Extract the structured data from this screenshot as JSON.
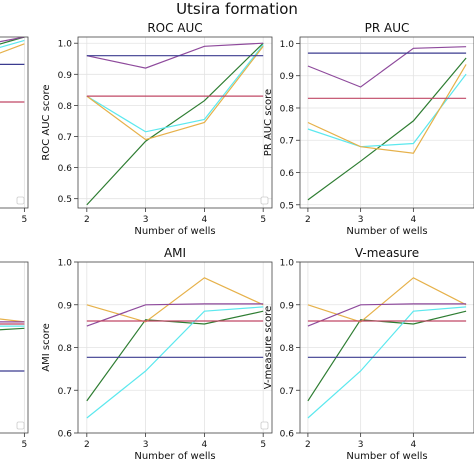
{
  "suptitle": "Utsira formation",
  "colors": {
    "dark_green": "#2e7d32",
    "cyan": "#5ce8ee",
    "orange": "#e6b14a",
    "purple": "#8e4a9c",
    "navy": "#3b3b8f",
    "pink": "#c04866"
  },
  "chart_data": [
    {
      "type": "line",
      "title": "",
      "xlabel": "",
      "ylabel": "",
      "x": [
        2,
        3,
        4,
        5
      ],
      "xticks": [
        "5"
      ],
      "yticks": [],
      "ylim": [
        0.5,
        1.0
      ],
      "series": [
        {
          "color": "dark_green",
          "values": [
            0.92,
            0.95,
            0.97,
            1.0
          ]
        },
        {
          "color": "cyan",
          "values": [
            0.9,
            0.93,
            0.96,
            0.99
          ]
        },
        {
          "color": "orange",
          "values": [
            0.88,
            0.9,
            0.94,
            0.98
          ]
        },
        {
          "color": "purple",
          "values": [
            0.93,
            0.96,
            0.98,
            1.0
          ]
        },
        {
          "color": "navy",
          "values": [
            0.92,
            0.92,
            0.92,
            0.92
          ]
        },
        {
          "color": "pink",
          "values": [
            0.81,
            0.81,
            0.81,
            0.81
          ]
        }
      ]
    },
    {
      "type": "line",
      "title": "ROC AUC",
      "xlabel": "Number of wells",
      "ylabel": "ROC AUC score",
      "x": [
        2,
        3,
        4,
        5
      ],
      "xticks": [
        "2",
        "3",
        "4",
        "5"
      ],
      "yticks": [
        "0.5",
        "0.6",
        "0.7",
        "0.8",
        "0.9",
        "1.0"
      ],
      "ylim": [
        0.47,
        1.02
      ],
      "series": [
        {
          "color": "dark_green",
          "values": [
            0.48,
            0.685,
            0.815,
            1.0
          ]
        },
        {
          "color": "cyan",
          "values": [
            0.83,
            0.715,
            0.755,
            0.995
          ]
        },
        {
          "color": "orange",
          "values": [
            0.83,
            0.69,
            0.745,
            0.99
          ]
        },
        {
          "color": "purple",
          "values": [
            0.96,
            0.92,
            0.99,
            1.0
          ]
        },
        {
          "color": "navy",
          "values": [
            0.96,
            0.96,
            0.96,
            0.96
          ]
        },
        {
          "color": "pink",
          "values": [
            0.83,
            0.83,
            0.83,
            0.83
          ]
        }
      ]
    },
    {
      "type": "line",
      "title": "PR AUC",
      "xlabel": "Number of wells",
      "ylabel": "PR AUC score",
      "x": [
        2,
        3,
        4,
        5
      ],
      "xticks": [
        "2",
        "3",
        "4"
      ],
      "yticks": [
        "0.5",
        "0.6",
        "0.7",
        "0.8",
        "0.9",
        "1.0"
      ],
      "ylim": [
        0.49,
        1.02
      ],
      "series": [
        {
          "color": "dark_green",
          "values": [
            0.515,
            0.635,
            0.76,
            0.955
          ]
        },
        {
          "color": "cyan",
          "values": [
            0.735,
            0.68,
            0.69,
            0.905
          ]
        },
        {
          "color": "orange",
          "values": [
            0.755,
            0.68,
            0.66,
            0.935
          ]
        },
        {
          "color": "purple",
          "values": [
            0.93,
            0.865,
            0.985,
            0.99
          ]
        },
        {
          "color": "navy",
          "values": [
            0.97,
            0.97,
            0.97,
            0.97
          ]
        },
        {
          "color": "pink",
          "values": [
            0.83,
            0.83,
            0.83,
            0.83
          ]
        }
      ]
    },
    {
      "type": "line",
      "title": "",
      "xlabel": "",
      "ylabel": "",
      "x": [
        2,
        3,
        4,
        5
      ],
      "xticks": [
        "5"
      ],
      "yticks": [],
      "ylim": [
        0.6,
        1.0
      ],
      "series": [
        {
          "color": "dark_green",
          "values": [
            0.82,
            0.83,
            0.84,
            0.845
          ]
        },
        {
          "color": "cyan",
          "values": [
            0.84,
            0.845,
            0.85,
            0.85
          ]
        },
        {
          "color": "orange",
          "values": [
            0.9,
            0.88,
            0.87,
            0.86
          ]
        },
        {
          "color": "purple",
          "values": [
            0.86,
            0.86,
            0.86,
            0.86
          ]
        },
        {
          "color": "navy",
          "values": [
            0.745,
            0.745,
            0.745,
            0.745
          ]
        },
        {
          "color": "pink",
          "values": [
            0.855,
            0.855,
            0.855,
            0.855
          ]
        }
      ]
    },
    {
      "type": "line",
      "title": "AMI",
      "xlabel": "Number of wells",
      "ylabel": "AMI score",
      "x": [
        2,
        3,
        4,
        5
      ],
      "xticks": [
        "2",
        "3",
        "4",
        "5"
      ],
      "yticks": [
        "0.6",
        "0.7",
        "0.8",
        "0.9",
        "1.0"
      ],
      "ylim": [
        0.6,
        1.0
      ],
      "series": [
        {
          "color": "dark_green",
          "values": [
            0.675,
            0.865,
            0.855,
            0.885
          ]
        },
        {
          "color": "cyan",
          "values": [
            0.635,
            0.745,
            0.885,
            0.895
          ]
        },
        {
          "color": "orange",
          "values": [
            0.9,
            0.86,
            0.963,
            0.9
          ]
        },
        {
          "color": "purple",
          "values": [
            0.85,
            0.9,
            0.902,
            0.902
          ]
        },
        {
          "color": "navy",
          "values": [
            0.777,
            0.777,
            0.777,
            0.777
          ]
        },
        {
          "color": "pink",
          "values": [
            0.862,
            0.862,
            0.862,
            0.862
          ]
        }
      ]
    },
    {
      "type": "line",
      "title": "V-measure",
      "xlabel": "Number of wells",
      "ylabel": "V-measure score",
      "x": [
        2,
        3,
        4,
        5
      ],
      "xticks": [
        "2",
        "3",
        "4"
      ],
      "yticks": [
        "0.6",
        "0.7",
        "0.8",
        "0.9",
        "1.0"
      ],
      "ylim": [
        0.6,
        1.0
      ],
      "series": [
        {
          "color": "dark_green",
          "values": [
            0.675,
            0.865,
            0.855,
            0.885
          ]
        },
        {
          "color": "cyan",
          "values": [
            0.635,
            0.745,
            0.885,
            0.895
          ]
        },
        {
          "color": "orange",
          "values": [
            0.9,
            0.86,
            0.963,
            0.9
          ]
        },
        {
          "color": "purple",
          "values": [
            0.85,
            0.9,
            0.902,
            0.902
          ]
        },
        {
          "color": "navy",
          "values": [
            0.777,
            0.777,
            0.777,
            0.777
          ]
        },
        {
          "color": "pink",
          "values": [
            0.862,
            0.862,
            0.862,
            0.862
          ]
        }
      ]
    }
  ]
}
